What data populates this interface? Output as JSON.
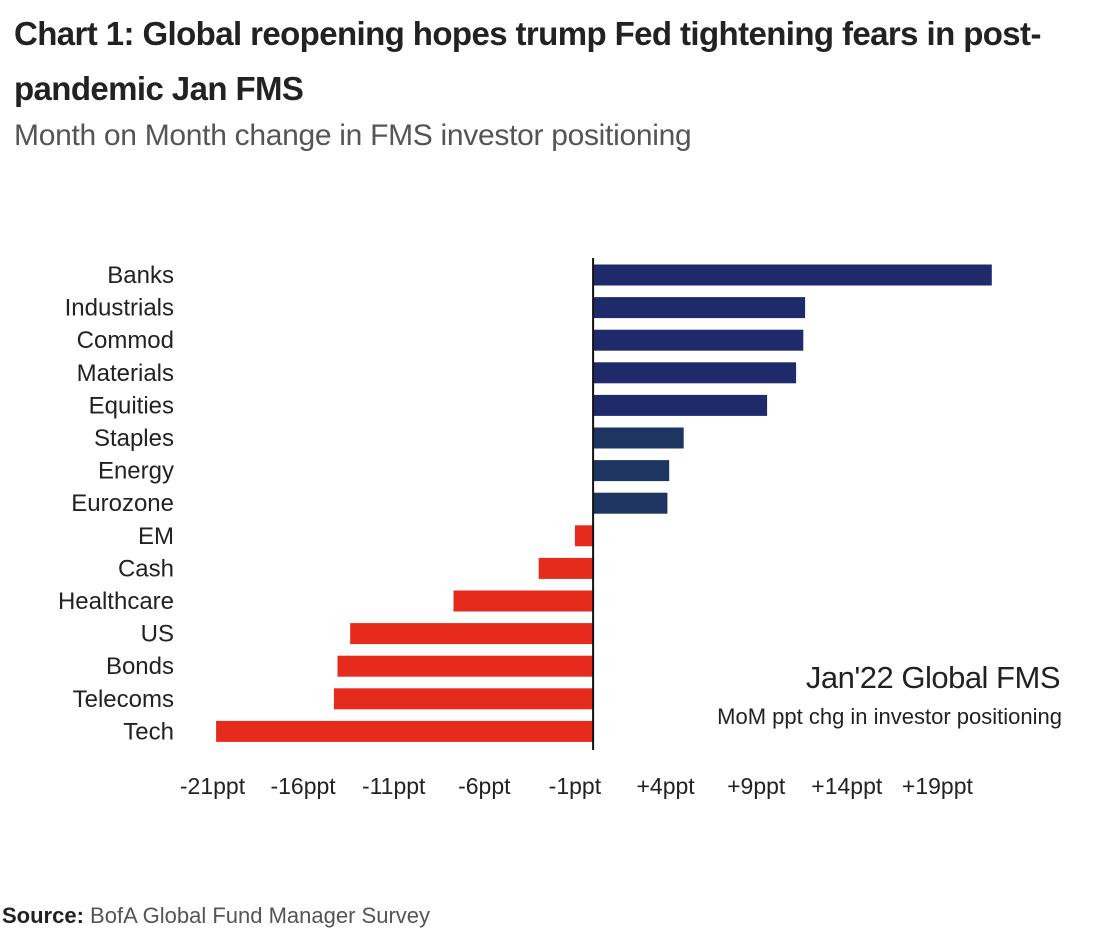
{
  "title": "Chart 1: Global reopening hopes trump Fed tightening fears in post-pandemic Jan FMS",
  "subtitle": "Month on Month change in FMS investor positioning",
  "source": {
    "label": "Source:",
    "text": "BofA Global Fund Manager Survey"
  },
  "annotation": {
    "main": "Jan'22 Global FMS",
    "sub": "MoM ppt chg in investor positioning"
  },
  "colors": {
    "positive_strong": "#1f2a6b",
    "positive_muted": "#1e3461",
    "negative": "#e42b1c",
    "axis": "#111111"
  },
  "chart_data": {
    "type": "bar",
    "orientation": "horizontal",
    "categories": [
      "Banks",
      "Industrials",
      "Commod",
      "Materials",
      "Equities",
      "Staples",
      "Energy",
      "Eurozone",
      "EM",
      "Cash",
      "Healthcare",
      "US",
      "Bonds",
      "Telecoms",
      "Tech"
    ],
    "values": [
      22,
      11.7,
      11.6,
      11.2,
      9.6,
      5,
      4.2,
      4.1,
      -1,
      -3,
      -7.7,
      -13.4,
      -14.1,
      -14.3,
      -20.8
    ],
    "xticks": [
      -21,
      -16,
      -11,
      -6,
      -1,
      4,
      9,
      14,
      19
    ],
    "xtick_labels": [
      "-21ppt",
      "-16ppt",
      "-11ppt",
      "-6ppt",
      "-1ppt",
      "+4ppt",
      "+9ppt",
      "+14ppt",
      "+19ppt"
    ],
    "xlim": [
      -21.8,
      24
    ],
    "title": "",
    "xlabel": "",
    "ylabel": "",
    "grid": false,
    "legend": "none"
  }
}
